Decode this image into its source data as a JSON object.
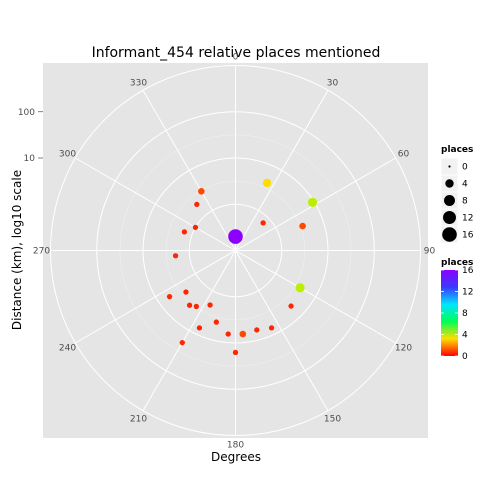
{
  "chart_data": {
    "type": "scatter",
    "coordinate_system": "polar",
    "title": "Informant_454 relative places mentioned",
    "xlabel": "Degrees",
    "ylabel": "Distance (km), log10 scale",
    "angle_ticks": [
      "0",
      "30",
      "60",
      "90",
      "120",
      "150",
      "180",
      "210",
      "240",
      "270",
      "300",
      "330"
    ],
    "radial_ticks": [
      "10",
      "100"
    ],
    "radial_scale": "log10",
    "grid": true,
    "legend_position": "right",
    "size_legend": {
      "title": "places",
      "labels": [
        "0",
        "4",
        "8",
        "12",
        "16"
      ],
      "values": [
        0,
        4,
        8,
        12,
        16
      ]
    },
    "color_legend": {
      "title": "places",
      "labels": [
        "16",
        "12",
        "8",
        "4",
        "0"
      ],
      "values": [
        16,
        12,
        8,
        4,
        0
      ],
      "colors": [
        "#8b00ff",
        "#00e5ff",
        "#00ff55",
        "#ffdd00",
        "#ff0000"
      ]
    },
    "points": [
      {
        "angle": 0,
        "distance": 0.2,
        "places": 16
      },
      {
        "angle": 58,
        "distance": 9.2,
        "places": 5
      },
      {
        "angle": 120,
        "distance": 4.1,
        "places": 5
      },
      {
        "angle": 25,
        "distance": 4.1,
        "places": 4
      },
      {
        "angle": 70,
        "distance": 3.5,
        "places": 2
      },
      {
        "angle": 330,
        "distance": 3.0,
        "places": 2
      },
      {
        "angle": 45,
        "distance": 0.7,
        "places": 1
      },
      {
        "angle": 290,
        "distance": 1.5,
        "places": 1
      },
      {
        "angle": 300,
        "distance": 1.0,
        "places": 1
      },
      {
        "angle": 265,
        "distance": 2.0,
        "places": 1
      },
      {
        "angle": 320,
        "distance": 2.0,
        "places": 1
      },
      {
        "angle": 230,
        "distance": 2.5,
        "places": 1
      },
      {
        "angle": 220,
        "distance": 3.5,
        "places": 1
      },
      {
        "angle": 215,
        "distance": 3.0,
        "places": 1
      },
      {
        "angle": 205,
        "distance": 2.0,
        "places": 1
      },
      {
        "angle": 195,
        "distance": 4.0,
        "places": 1
      },
      {
        "angle": 185,
        "distance": 6.5,
        "places": 1
      },
      {
        "angle": 165,
        "distance": 6.0,
        "places": 1
      },
      {
        "angle": 155,
        "distance": 7.0,
        "places": 1
      },
      {
        "angle": 135,
        "distance": 5.0,
        "places": 1
      },
      {
        "angle": 205,
        "distance": 7.0,
        "places": 1
      },
      {
        "angle": 235,
        "distance": 5.5,
        "places": 1
      },
      {
        "angle": 210,
        "distance": 20.0,
        "places": 1
      },
      {
        "angle": 180,
        "distance": 16.0,
        "places": 1
      },
      {
        "angle": 175,
        "distance": 6.5,
        "places": 2
      }
    ]
  }
}
